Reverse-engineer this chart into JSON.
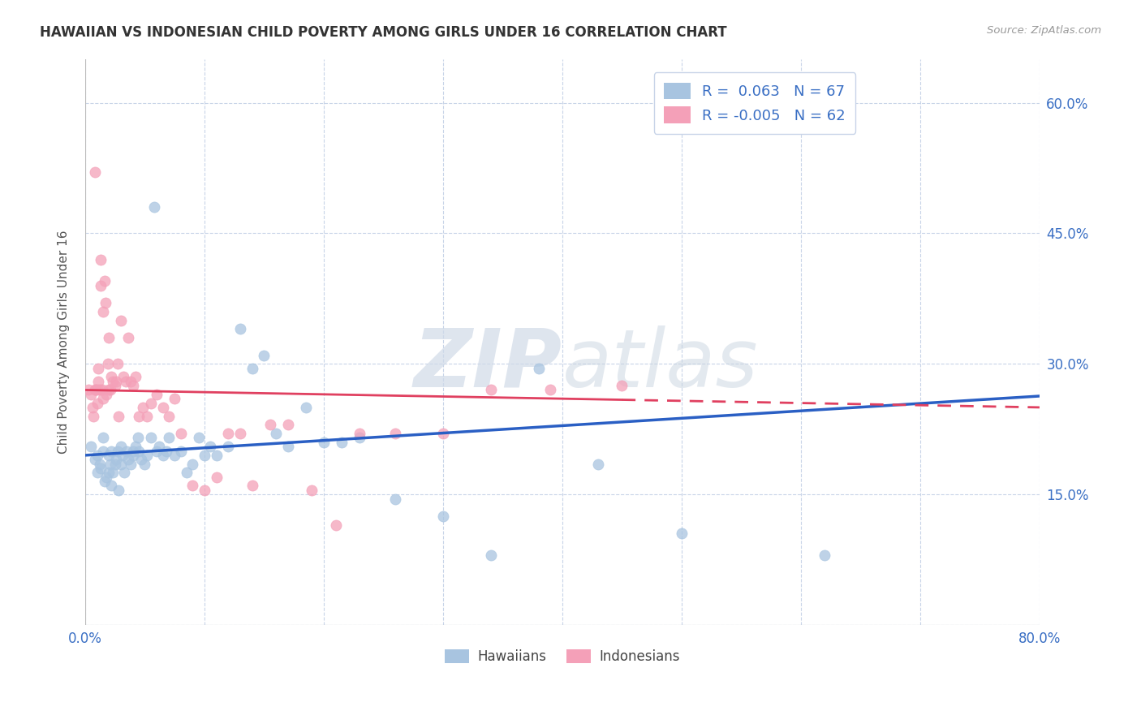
{
  "title": "HAWAIIAN VS INDONESIAN CHILD POVERTY AMONG GIRLS UNDER 16 CORRELATION CHART",
  "source": "Source: ZipAtlas.com",
  "ylabel": "Child Poverty Among Girls Under 16",
  "legend_labels": [
    "Hawaiians",
    "Indonesians"
  ],
  "legend_r": [
    " 0.063",
    "-0.005"
  ],
  "legend_n": [
    "67",
    "62"
  ],
  "hawaiian_color": "#a8c4e0",
  "indonesian_color": "#f4a0b8",
  "hawaiian_line_color": "#2a5fc4",
  "indonesian_line_color": "#e04060",
  "background_color": "#ffffff",
  "grid_color": "#c8d4e8",
  "xlim": [
    0.0,
    0.8
  ],
  "ylim": [
    0.0,
    0.65
  ],
  "xticks": [
    0.0,
    0.1,
    0.2,
    0.3,
    0.4,
    0.5,
    0.6,
    0.7,
    0.8
  ],
  "xticklabels": [
    "0.0%",
    "",
    "",
    "",
    "",
    "",
    "",
    "",
    "80.0%"
  ],
  "yticks": [
    0.0,
    0.15,
    0.3,
    0.45,
    0.6
  ],
  "yticklabels_right": [
    "",
    "15.0%",
    "30.0%",
    "45.0%",
    "60.0%"
  ],
  "watermark_zip": "ZIP",
  "watermark_atlas": "atlas",
  "hawaiian_x": [
    0.005,
    0.008,
    0.01,
    0.01,
    0.012,
    0.013,
    0.015,
    0.015,
    0.016,
    0.018,
    0.02,
    0.02,
    0.021,
    0.022,
    0.022,
    0.023,
    0.025,
    0.026,
    0.027,
    0.028,
    0.03,
    0.03,
    0.031,
    0.033,
    0.035,
    0.036,
    0.038,
    0.04,
    0.04,
    0.042,
    0.044,
    0.045,
    0.047,
    0.05,
    0.052,
    0.055,
    0.058,
    0.06,
    0.062,
    0.065,
    0.068,
    0.07,
    0.075,
    0.08,
    0.085,
    0.09,
    0.095,
    0.1,
    0.105,
    0.11,
    0.12,
    0.13,
    0.14,
    0.15,
    0.16,
    0.17,
    0.185,
    0.2,
    0.215,
    0.23,
    0.26,
    0.3,
    0.34,
    0.38,
    0.43,
    0.5,
    0.62
  ],
  "hawaiian_y": [
    0.205,
    0.19,
    0.195,
    0.175,
    0.185,
    0.18,
    0.2,
    0.215,
    0.165,
    0.17,
    0.175,
    0.195,
    0.185,
    0.2,
    0.16,
    0.175,
    0.185,
    0.19,
    0.2,
    0.155,
    0.205,
    0.185,
    0.195,
    0.175,
    0.2,
    0.19,
    0.185,
    0.2,
    0.195,
    0.205,
    0.215,
    0.2,
    0.19,
    0.185,
    0.195,
    0.215,
    0.48,
    0.2,
    0.205,
    0.195,
    0.2,
    0.215,
    0.195,
    0.2,
    0.175,
    0.185,
    0.215,
    0.195,
    0.205,
    0.195,
    0.205,
    0.34,
    0.295,
    0.31,
    0.22,
    0.205,
    0.25,
    0.21,
    0.21,
    0.215,
    0.145,
    0.125,
    0.08,
    0.295,
    0.185,
    0.105,
    0.08
  ],
  "indonesian_x": [
    0.003,
    0.005,
    0.006,
    0.007,
    0.008,
    0.008,
    0.009,
    0.01,
    0.01,
    0.011,
    0.011,
    0.012,
    0.013,
    0.013,
    0.014,
    0.015,
    0.015,
    0.016,
    0.017,
    0.018,
    0.019,
    0.02,
    0.02,
    0.021,
    0.022,
    0.023,
    0.025,
    0.026,
    0.027,
    0.028,
    0.03,
    0.032,
    0.034,
    0.036,
    0.038,
    0.04,
    0.042,
    0.045,
    0.048,
    0.052,
    0.055,
    0.06,
    0.065,
    0.07,
    0.075,
    0.08,
    0.09,
    0.1,
    0.11,
    0.12,
    0.13,
    0.14,
    0.155,
    0.17,
    0.19,
    0.21,
    0.23,
    0.26,
    0.3,
    0.34,
    0.39,
    0.45
  ],
  "indonesian_y": [
    0.27,
    0.265,
    0.25,
    0.24,
    0.27,
    0.52,
    0.27,
    0.255,
    0.27,
    0.28,
    0.295,
    0.27,
    0.39,
    0.42,
    0.27,
    0.26,
    0.36,
    0.395,
    0.37,
    0.265,
    0.3,
    0.27,
    0.33,
    0.27,
    0.285,
    0.28,
    0.275,
    0.28,
    0.3,
    0.24,
    0.35,
    0.285,
    0.28,
    0.33,
    0.28,
    0.275,
    0.285,
    0.24,
    0.25,
    0.24,
    0.255,
    0.265,
    0.25,
    0.24,
    0.26,
    0.22,
    0.16,
    0.155,
    0.17,
    0.22,
    0.22,
    0.16,
    0.23,
    0.23,
    0.155,
    0.115,
    0.22,
    0.22,
    0.22,
    0.27,
    0.27,
    0.275
  ]
}
